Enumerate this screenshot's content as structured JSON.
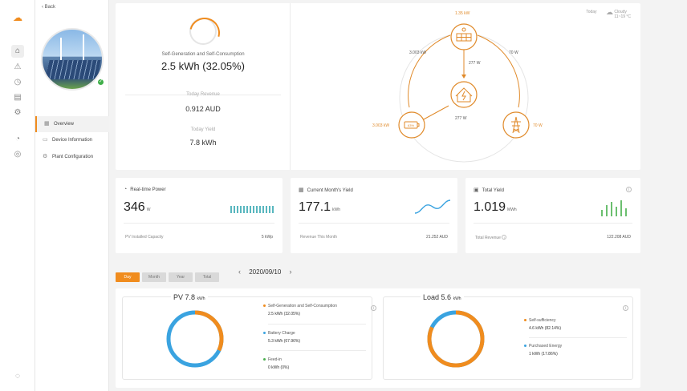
{
  "nav": {
    "back_label": "Back",
    "menu": [
      {
        "label": "Overview",
        "icon": "grid-icon"
      },
      {
        "label": "Device Information",
        "icon": "device-icon"
      },
      {
        "label": "Plant Configuration",
        "icon": "settings-icon"
      }
    ]
  },
  "flow": {
    "self_gen_label": "Self-Generation and Self-Consumption",
    "self_gen_value": "2.5 kWh (32.05%)",
    "revenue_label": "Today Revenue",
    "revenue_value": "0.912 AUD",
    "yield_label": "Today Yield",
    "yield_value": "7.8 kWh",
    "weather": {
      "today": "Today",
      "condition": "Cloudy",
      "temp": "11~19 °C"
    },
    "diagram": {
      "pv_power": "1.35 kW",
      "left_arc": "3.003 kW",
      "right_arc": "70 W",
      "pv_to_home": "277 W",
      "battery_power": "3.003 kW",
      "battery_to_home": "277 W",
      "grid_power": "70 W",
      "battery_level": "63%"
    }
  },
  "stats": [
    {
      "title": "Real-time Power",
      "value": "346",
      "unit": "W",
      "foot_label": "PV Installed Capacity",
      "foot_value": "5 kWp"
    },
    {
      "title": "Current Month's Yield",
      "value": "177.1",
      "unit": "kWh",
      "foot_label": "Revenue This Month",
      "foot_value": "21.252 AUD"
    },
    {
      "title": "Total Yield",
      "value": "1.019",
      "unit": "MWh",
      "foot_label": "Total Revenue",
      "foot_value": "122.208 AUD"
    }
  ],
  "period_tabs": [
    "Day",
    "Month",
    "Year",
    "Total"
  ],
  "date": "2020/09/10",
  "pv": {
    "title": "PV 7.8",
    "unit": "kWh",
    "items": [
      {
        "label": "Self-Generation and Self-Consumption",
        "value": "2.5 kWh (32.05%)",
        "color": "#f08c1e"
      },
      {
        "label": "Battery Charge",
        "value": "5.3 kWh (67.96%)",
        "color": "#3aa3e0"
      },
      {
        "label": "Feed-in",
        "value": "0 kWh (0%)",
        "color": "#4caf50"
      }
    ]
  },
  "load": {
    "title": "Load 5.6",
    "unit": "kWh",
    "items": [
      {
        "label": "Self-sufficiency",
        "value": "4.6 kWh (82.14%)",
        "color": "#f08c1e"
      },
      {
        "label": "Purchased Energy",
        "value": "1 kWh (17.86%)",
        "color": "#3aa3e0"
      }
    ]
  },
  "colors": {
    "accent": "#f08c1e",
    "blue": "#3aa3e0",
    "teal": "#59b7bf"
  }
}
